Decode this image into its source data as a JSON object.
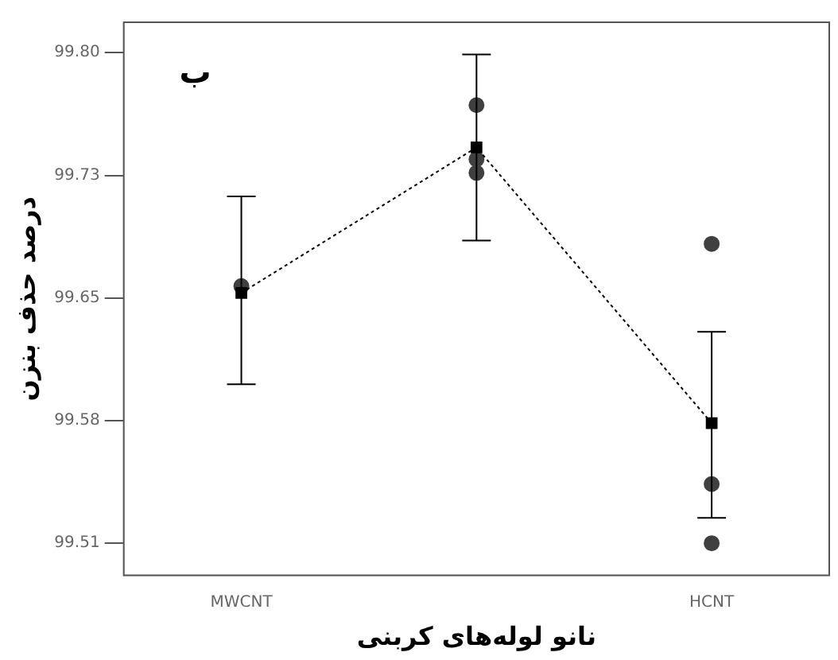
{
  "chart_data": {
    "type": "line",
    "xlabel": "نانو لوله‌های کربنی",
    "ylabel": "درصد حذف بنزن",
    "annotations": [
      "ب"
    ],
    "categories": [
      "MWCNT",
      null,
      "HCNT"
    ],
    "ylim": [
      99.491,
      99.818
    ],
    "yticks": [
      {
        "value": 99.8,
        "label": "99.80"
      },
      {
        "value": 99.7275,
        "label": "99.73"
      },
      {
        "value": 99.655,
        "label": "99.65"
      },
      {
        "value": 99.5825,
        "label": "99.58"
      },
      {
        "value": 99.51,
        "label": "99.51"
      }
    ],
    "grid": false,
    "legend": false,
    "series": [
      {
        "type": "scatter",
        "color": "#404040",
        "marker": "circle",
        "values": [
          99.662,
          99.769,
          99.687
        ]
      },
      {
        "type": "scatter",
        "color": "#404040",
        "marker": "circle",
        "values": [
          null,
          99.737,
          99.545
        ]
      },
      {
        "type": "scatter",
        "color": "#404040",
        "marker": "circle",
        "values": [
          null,
          99.729,
          99.51
        ]
      },
      {
        "color": "#000000",
        "marker": "square",
        "line_style": "dotted",
        "values": [
          99.658,
          99.744,
          99.581
        ],
        "errors": [
          [
            99.604,
            99.715
          ],
          [
            99.689,
            99.799
          ],
          [
            99.525,
            99.635
          ]
        ]
      }
    ]
  }
}
